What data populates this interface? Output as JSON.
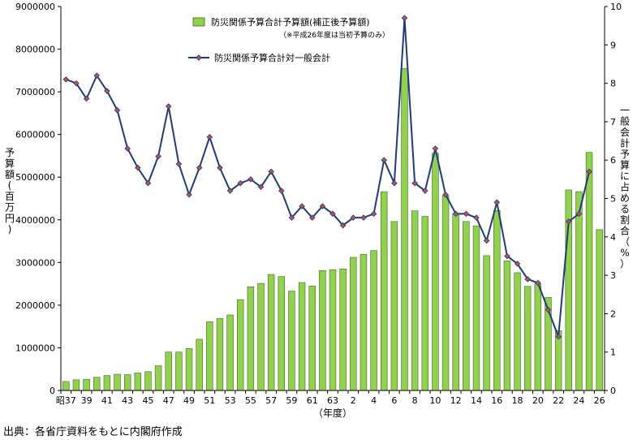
{
  "chart_data": {
    "type": "bar+line",
    "xlabel": "（年度）",
    "ylabel_left": "予算額(百万円)",
    "ylabel_right": "一般会計予算に占める割合（%）",
    "ylim_left": [
      0,
      9000000
    ],
    "ylim_right": [
      0,
      10
    ],
    "yticks_left": [
      "0",
      "1000000",
      "2000000",
      "3000000",
      "4000000",
      "5000000",
      "6000000",
      "7000000",
      "8000000",
      "9000000"
    ],
    "yticks_right": [
      "0",
      "1",
      "2",
      "3",
      "4",
      "5",
      "6",
      "7",
      "8",
      "9",
      "10"
    ],
    "xtick_labels": [
      "昭37",
      "39",
      "41",
      "43",
      "45",
      "47",
      "49",
      "51",
      "53",
      "55",
      "57",
      "59",
      "61",
      "63",
      "2",
      "4",
      "6",
      "8",
      "10",
      "12",
      "14",
      "16",
      "18",
      "20",
      "22",
      "24",
      "26"
    ],
    "categories": [
      "昭37",
      "38",
      "39",
      "40",
      "41",
      "42",
      "43",
      "44",
      "45",
      "46",
      "47",
      "48",
      "49",
      "50",
      "51",
      "52",
      "53",
      "54",
      "55",
      "56",
      "57",
      "58",
      "59",
      "60",
      "61",
      "62",
      "63",
      "元",
      "2",
      "3",
      "4",
      "5",
      "6",
      "7",
      "8",
      "9",
      "10",
      "11",
      "12",
      "13",
      "14",
      "15",
      "16",
      "17",
      "18",
      "19",
      "20",
      "21",
      "22",
      "23",
      "24",
      "25",
      "26"
    ],
    "series": [
      {
        "name": "防災関係予算合計予算額(補正後予算額)",
        "note": "（※平成26年度は当初予算のみ）",
        "kind": "bar",
        "axis": "left",
        "color": "#92d050",
        "values": [
          210000,
          250000,
          260000,
          310000,
          350000,
          380000,
          370000,
          410000,
          440000,
          580000,
          900000,
          900000,
          980000,
          1200000,
          1610000,
          1690000,
          1770000,
          2130000,
          2430000,
          2510000,
          2720000,
          2670000,
          2330000,
          2530000,
          2450000,
          2810000,
          2830000,
          2850000,
          3120000,
          3190000,
          3280000,
          4660000,
          3960000,
          7550000,
          4210000,
          4080000,
          5560000,
          4570000,
          4150000,
          3960000,
          3860000,
          3160000,
          4220000,
          3040000,
          2760000,
          2440000,
          2500000,
          2180000,
          1400000,
          4700000,
          4660000,
          5580000,
          3770000
        ]
      },
      {
        "name": "防災関係予算合計対一般会計",
        "kind": "line",
        "axis": "right",
        "color": "#1f3a7a",
        "marker_color": "#c0504d",
        "values": [
          8.1,
          8.0,
          7.6,
          8.2,
          7.8,
          7.3,
          6.3,
          5.8,
          5.4,
          6.1,
          7.4,
          5.9,
          5.1,
          5.8,
          6.6,
          5.8,
          5.2,
          5.4,
          5.5,
          5.3,
          5.7,
          5.2,
          4.5,
          4.8,
          4.5,
          4.8,
          4.6,
          4.3,
          4.5,
          4.5,
          4.6,
          6.0,
          5.4,
          9.7,
          5.4,
          5.2,
          6.3,
          5.1,
          4.6,
          4.6,
          4.5,
          3.9,
          4.9,
          3.5,
          3.3,
          2.9,
          2.8,
          2.1,
          1.4,
          4.4,
          4.6,
          5.7,
          null
        ]
      }
    ],
    "legend_position": "top-center",
    "grid": false
  },
  "source_text": "出典：各省庁資料をもとに内閣府作成"
}
